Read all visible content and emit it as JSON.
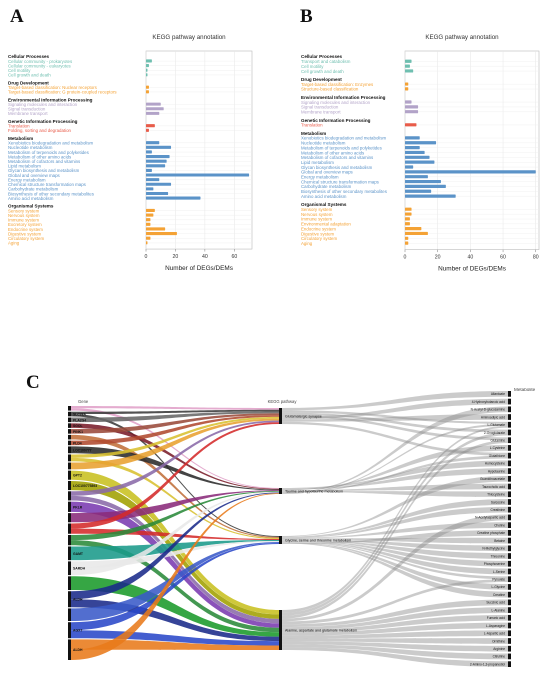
{
  "panel_letters": [
    "A",
    "B",
    "C"
  ],
  "chart_data": [
    {
      "type": "bar",
      "orientation": "horizontal",
      "title": "KEGG pathway annotation",
      "xlabel": "Number of DEGs/DEMs",
      "xticks": [
        0,
        20,
        40,
        60
      ],
      "xlim": [
        0,
        72
      ],
      "grid": true,
      "groups": [
        {
          "name": "Cellular Processes",
          "color": "#6fbfb0",
          "items": [
            {
              "label": "Cellular community - prokaryotes",
              "value": 4
            },
            {
              "label": "Cellular community - eukaryotes",
              "value": 2
            },
            {
              "label": "Cell motility",
              "value": 1
            },
            {
              "label": "Cell growth and death",
              "value": 1
            }
          ]
        },
        {
          "name": "Drug Development",
          "color": "#f4a235",
          "items": [
            {
              "label": "Target-based classification: Nuclear receptors",
              "value": 2
            },
            {
              "label": "Target-based classification: G protein-coupled receptors",
              "value": 2
            }
          ]
        },
        {
          "name": "Environmental Information Processing",
          "color": "#b2a3c8",
          "items": [
            {
              "label": "Signaling molecules and interaction",
              "value": 10
            },
            {
              "label": "Signal transduction",
              "value": 12
            },
            {
              "label": "Membrane transport",
              "value": 9
            }
          ]
        },
        {
          "name": "Genetic Information Processing",
          "color": "#e85c4a",
          "items": [
            {
              "label": "Translation",
              "value": 6
            },
            {
              "label": "Folding, sorting and degradation",
              "value": 2
            }
          ]
        },
        {
          "name": "Metabolism",
          "color": "#5b93c8",
          "items": [
            {
              "label": "Xenobiotics biodegradation and metabolism",
              "value": 9
            },
            {
              "label": "Nucleotide metabolism",
              "value": 17
            },
            {
              "label": "Metabolism of terpenoids and polyketides",
              "value": 4
            },
            {
              "label": "Metabolism of other amino acids",
              "value": 16
            },
            {
              "label": "Metabolism of cofactors and vitamins",
              "value": 14
            },
            {
              "label": "Lipid metabolism",
              "value": 13
            },
            {
              "label": "Glycan biosynthesis and metabolism",
              "value": 4
            },
            {
              "label": "Global and overview maps",
              "value": 70
            },
            {
              "label": "Energy metabolism",
              "value": 9
            },
            {
              "label": "Chemical structure transformation maps",
              "value": 17
            },
            {
              "label": "Carbohydrate metabolism",
              "value": 5
            },
            {
              "label": "Biosynthesis of other secondary metabolites",
              "value": 15
            },
            {
              "label": "Amino acid metabolism",
              "value": 37
            }
          ]
        },
        {
          "name": "Organismal Systems",
          "color": "#f4a235",
          "items": [
            {
              "label": "Sensory system",
              "value": 6
            },
            {
              "label": "Nervous system",
              "value": 5
            },
            {
              "label": "Immune system",
              "value": 3
            },
            {
              "label": "Excretory system",
              "value": 3
            },
            {
              "label": "Endocrine system",
              "value": 13
            },
            {
              "label": "Digestive system",
              "value": 21
            },
            {
              "label": "Circulatory system",
              "value": 3
            },
            {
              "label": "Aging",
              "value": 1
            }
          ]
        }
      ]
    },
    {
      "type": "bar",
      "orientation": "horizontal",
      "title": "KEGG pathway annotation",
      "xlabel": "Number of DEGs/DEMs",
      "xticks": [
        0,
        20,
        40,
        60,
        80
      ],
      "xlim": [
        0,
        82
      ],
      "grid": true,
      "groups": [
        {
          "name": "Cellular Processes",
          "color": "#6fbfb0",
          "items": [
            {
              "label": "Transport and catabolism",
              "value": 4
            },
            {
              "label": "Cell motility",
              "value": 3
            },
            {
              "label": "Cell growth and death",
              "value": 5
            }
          ]
        },
        {
          "name": "Drug Development",
          "color": "#f4a235",
          "items": [
            {
              "label": "Target-based classification: Enzymes",
              "value": 2
            },
            {
              "label": "Structure-based classification",
              "value": 2
            }
          ]
        },
        {
          "name": "Environmental Information Processing",
          "color": "#b2a3c8",
          "items": [
            {
              "label": "Signaling molecules and interaction",
              "value": 4
            },
            {
              "label": "Signal transduction",
              "value": 8
            },
            {
              "label": "Membrane transport",
              "value": 8
            }
          ]
        },
        {
          "name": "Genetic Information Processing",
          "color": "#e85c4a",
          "items": [
            {
              "label": "Translation",
              "value": 7
            }
          ]
        },
        {
          "name": "Metabolism",
          "color": "#5b93c8",
          "items": [
            {
              "label": "Xenobiotics biodegradation and metabolism",
              "value": 9
            },
            {
              "label": "Nucleotide metabolism",
              "value": 19
            },
            {
              "label": "Metabolism of terpenoids and polyketides",
              "value": 9
            },
            {
              "label": "Metabolism of other amino acids",
              "value": 12
            },
            {
              "label": "Metabolism of cofactors and vitamins",
              "value": 15
            },
            {
              "label": "Lipid metabolism",
              "value": 18
            },
            {
              "label": "Glycan biosynthesis and metabolism",
              "value": 5
            },
            {
              "label": "Global and overview maps",
              "value": 80
            },
            {
              "label": "Energy metabolism",
              "value": 14
            },
            {
              "label": "Chemical structure transformation maps",
              "value": 22
            },
            {
              "label": "Carbohydrate metabolism",
              "value": 25
            },
            {
              "label": "Biosynthesis of other secondary metabolites",
              "value": 16
            },
            {
              "label": "Amino acid metabolism",
              "value": 31
            }
          ]
        },
        {
          "name": "Organismal Systems",
          "color": "#f4a235",
          "items": [
            {
              "label": "Sensory system",
              "value": 4
            },
            {
              "label": "Nervous system",
              "value": 4
            },
            {
              "label": "Immune system",
              "value": 3
            },
            {
              "label": "Environmental adaptation",
              "value": 3
            },
            {
              "label": "Endocrine system",
              "value": 10
            },
            {
              "label": "Digestive system",
              "value": 14
            },
            {
              "label": "Circulatory system",
              "value": 2
            },
            {
              "label": "Aging",
              "value": 2
            }
          ]
        }
      ]
    },
    {
      "type": "sankey",
      "column_headers": [
        "Gene",
        "KEGG pathway",
        "Metabolite"
      ],
      "genes": [
        {
          "label": "",
          "color": "#e0a0c8",
          "weight": 0.8
        },
        {
          "label": "SLC38A",
          "color": "#3a3a3a",
          "weight": 0.8
        },
        {
          "label": "PLA2G4",
          "color": "#666666",
          "weight": 0.8
        },
        {
          "label": "SGOL",
          "color": "#7a1c2a",
          "weight": 0.8
        },
        {
          "label": "PINK1",
          "color": "#9a4a3a",
          "weight": 0.8
        },
        {
          "label": "",
          "color": "#c0703a",
          "weight": 0.8
        },
        {
          "label": "PLD4",
          "color": "#b04a30",
          "weight": 0.8
        },
        {
          "label": "LOC100777",
          "color": "#2a2a2a",
          "weight": 1.2
        },
        {
          "label": "",
          "color": "#d8c030",
          "weight": 1.2
        },
        {
          "label": "",
          "color": "#e8a030",
          "weight": 1.2
        },
        {
          "label": "GPT2",
          "color": "#c8c020",
          "weight": 1.6
        },
        {
          "label": "LOC100775893",
          "color": "#a0a000",
          "weight": 1.6
        },
        {
          "label": "",
          "color": "#8a6aa8",
          "weight": 1.6
        },
        {
          "label": "PKLR",
          "color": "#7a3ab0",
          "weight": 1.8
        },
        {
          "label": "",
          "color": "#8a2a7a",
          "weight": 1.6
        },
        {
          "label": "",
          "color": "#d42a2a",
          "weight": 1.8
        },
        {
          "label": "",
          "color": "#2a8a3a",
          "weight": 1.8
        },
        {
          "label": "GAMT",
          "color": "#1a9a8a",
          "weight": 2.4
        },
        {
          "label": "SARDH",
          "color": "#e8e8e8",
          "weight": 2.4
        },
        {
          "label": "",
          "color": "#1a9a2a",
          "weight": 2.4
        },
        {
          "label": "ALDH",
          "color": "#1a2a8a",
          "weight": 2.8
        },
        {
          "label": "",
          "color": "#3a5ac8",
          "weight": 2.2
        },
        {
          "label": "AGXT",
          "color": "#2a48c8",
          "weight": 2.8
        },
        {
          "label": "ALDH",
          "color": "#e87a1a",
          "weight": 3.6
        }
      ],
      "pathways": [
        "Glutamatergic synapse",
        "Taurine and hypotaurine metabolism",
        "Glycine, serine and threonine metabolism",
        "Alanine, aspartate and glutamate metabolism"
      ],
      "metabolites": [
        "Allantoate",
        "4-Hydroxybutanoic acid",
        "N-Acetyl-D-glucosamine",
        "Aminoadipic acid",
        "L-Glutamate",
        "2-Oxoglutarate",
        "Glutamine",
        "L-Cysteine",
        "Glutathione",
        "Homocysteine",
        "Hypotaurine",
        "Guanidinoacetate",
        "Taurocholic acid",
        "Thiocysteine",
        "Sarcosine",
        "Creatinine",
        "N-Acetylaspartic acid",
        "Choline",
        "Creatine phosphate",
        "Betaine",
        "N-Methylglycine",
        "Threonine",
        "Phosphoserine",
        "L-Serine",
        "Pyruvate",
        "L-Glycine",
        "Creatine",
        "Succinic acid",
        "L-Alanine",
        "Fumaric acid",
        "L-Asparagine",
        "L-Aspartic acid",
        "Ornithine",
        "Arginine",
        "Citrulline",
        "2-Amino-1,3-propanediol"
      ],
      "links": [
        [
          0,
          0
        ],
        [
          0,
          1
        ],
        [
          1,
          0
        ],
        [
          1,
          2
        ],
        [
          2,
          0
        ],
        [
          3,
          1
        ],
        [
          4,
          0
        ],
        [
          5,
          2
        ],
        [
          6,
          0
        ],
        [
          7,
          1
        ],
        [
          8,
          0
        ],
        [
          8,
          2
        ],
        [
          9,
          0
        ],
        [
          10,
          3
        ],
        [
          11,
          3
        ],
        [
          12,
          0
        ],
        [
          12,
          3
        ],
        [
          13,
          3
        ],
        [
          14,
          1
        ],
        [
          15,
          0
        ],
        [
          15,
          2
        ],
        [
          16,
          1
        ],
        [
          16,
          3
        ],
        [
          17,
          2
        ],
        [
          18,
          2
        ],
        [
          18,
          1
        ],
        [
          19,
          3
        ],
        [
          20,
          1
        ],
        [
          20,
          3
        ],
        [
          21,
          2
        ],
        [
          22,
          2
        ],
        [
          22,
          3
        ],
        [
          23,
          3
        ],
        [
          23,
          1
        ]
      ],
      "pathway_links": [
        [
          0,
          0
        ],
        [
          0,
          4
        ],
        [
          0,
          5
        ],
        [
          0,
          6
        ],
        [
          0,
          1
        ],
        [
          0,
          3
        ],
        [
          0,
          8
        ],
        [
          1,
          9
        ],
        [
          1,
          10
        ],
        [
          1,
          7
        ],
        [
          1,
          12
        ],
        [
          1,
          13
        ],
        [
          1,
          8
        ],
        [
          1,
          2
        ],
        [
          1,
          4
        ],
        [
          2,
          11
        ],
        [
          2,
          14
        ],
        [
          2,
          15
        ],
        [
          2,
          17
        ],
        [
          2,
          19
        ],
        [
          2,
          20
        ],
        [
          2,
          21
        ],
        [
          2,
          22
        ],
        [
          2,
          23
        ],
        [
          2,
          24
        ],
        [
          2,
          25
        ],
        [
          2,
          26
        ],
        [
          2,
          18
        ],
        [
          3,
          4
        ],
        [
          3,
          5
        ],
        [
          3,
          6
        ],
        [
          3,
          16
        ],
        [
          3,
          24
        ],
        [
          3,
          27
        ],
        [
          3,
          28
        ],
        [
          3,
          29
        ],
        [
          3,
          30
        ],
        [
          3,
          31
        ],
        [
          3,
          32
        ],
        [
          3,
          33
        ],
        [
          3,
          34
        ],
        [
          3,
          35
        ]
      ]
    }
  ]
}
